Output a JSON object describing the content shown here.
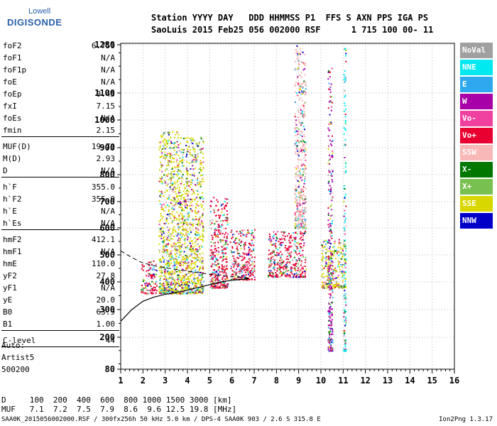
{
  "logo": {
    "line1": "Lowell",
    "line2": "DIGISONDE"
  },
  "header": {
    "line1": "Station YYYY DAY   DDD HHMMSS P1  FFS S AXN PPS IGA PS",
    "line2": "SaoLuis 2015 Feb25 056 002000 RSF      1 715 100 00- 11"
  },
  "params": [
    {
      "label": "foF2",
      "value": "6.750"
    },
    {
      "label": "foF1",
      "value": "N/A"
    },
    {
      "label": "foF1p",
      "value": "N/A"
    },
    {
      "label": "foE",
      "value": "N/A"
    },
    {
      "label": "foEp",
      "value": "0.45"
    },
    {
      "label": "fxI",
      "value": "7.15"
    },
    {
      "label": "foEs",
      "value": "N/A"
    },
    {
      "label": "fmin",
      "value": "2.15"
    },
    {
      "label": "MUF(D)",
      "value": "19.79"
    },
    {
      "label": "M(D)",
      "value": "2.93"
    },
    {
      "label": "D",
      "value": "N/A"
    },
    {
      "label": "h`F",
      "value": "355.0"
    },
    {
      "label": "h`F2",
      "value": "355.0"
    },
    {
      "label": "h`E",
      "value": "N/A"
    },
    {
      "label": "h`Es",
      "value": "N/A"
    },
    {
      "label": "hmF2",
      "value": "412.1"
    },
    {
      "label": "hmF1",
      "value": "N/A"
    },
    {
      "label": "hmE",
      "value": "110.0"
    },
    {
      "label": "yF2",
      "value": "27.8"
    },
    {
      "label": "yF1",
      "value": "N/A"
    },
    {
      "label": "yE",
      "value": "20.0"
    },
    {
      "label": "B0",
      "value": "63.9"
    },
    {
      "label": "B1",
      "value": "1.00"
    },
    {
      "label": "C-level",
      "value": "44"
    }
  ],
  "auto": {
    "line1": "Auto:",
    "line2": "Artist5",
    "line3": "500200"
  },
  "legend": [
    {
      "label": "NoVal",
      "color": "#a0a0a0"
    },
    {
      "label": "NNE",
      "color": "#00e8f0"
    },
    {
      "label": "E",
      "color": "#30a8f0"
    },
    {
      "label": "W",
      "color": "#a800a8"
    },
    {
      "label": "Vo-",
      "color": "#f040a0"
    },
    {
      "label": "Vo+",
      "color": "#e80030"
    },
    {
      "label": "SSW",
      "color": "#f8b8b8"
    },
    {
      "label": "X-",
      "color": "#007800"
    },
    {
      "label": "X+",
      "color": "#78c050"
    },
    {
      "label": "SSE",
      "color": "#d8d800"
    },
    {
      "label": "NNW",
      "color": "#0000c8"
    }
  ],
  "footer": {
    "d_row": "D     100  200  400  600  800 1000 1500 3000 [km]",
    "muf_row": "MUF   7.1  7.2  7.5  7.9  8.6  9.6 12.5 19.8 [MHz]",
    "info": "SAA0K_2015056002000.RSF / 300fx256h 50 kHz 5.0 km / DPS-4 SAA0K 903 / 2.6 S 315.8 E",
    "version": "Ion2Png 1.3.17"
  },
  "chart_data": {
    "type": "scatter",
    "title": "",
    "xlabel": "",
    "ylabel": "",
    "xlim": [
      1,
      16
    ],
    "ylim": [
      80,
      1280
    ],
    "x_ticks": [
      "1",
      "2",
      "3",
      "4",
      "5",
      "6",
      "7",
      "8",
      "9",
      "10",
      "11",
      "12",
      "13",
      "14",
      "15",
      "16"
    ],
    "y_ticks": [
      "80",
      "200",
      "300",
      "400",
      "500",
      "600",
      "700",
      "800",
      "900",
      "1000",
      "1100",
      "1280"
    ],
    "grid": true,
    "legend_position": "right",
    "profile_curve": {
      "x": [
        1.0,
        1.5,
        2.0,
        2.5,
        3.0,
        3.5,
        4.0,
        4.5,
        5.0,
        5.5,
        6.0,
        6.5,
        6.75
      ],
      "y": [
        258,
        300,
        330,
        345,
        355,
        362,
        370,
        380,
        390,
        400,
        406,
        410,
        412
      ]
    },
    "ordinary_trace": {
      "x": [
        1.0,
        1.5,
        2.0,
        2.5,
        3.0,
        3.5,
        4.0,
        4.5,
        5.0,
        5.5,
        6.0,
        6.5,
        6.75
      ],
      "y": [
        515,
        490,
        470,
        460,
        452,
        446,
        440,
        434,
        428,
        424,
        420,
        416,
        414
      ]
    },
    "clusters": [
      {
        "x": [
          1.9,
          2.6
        ],
        "y": [
          360,
          480
        ],
        "dominant": "Vo+"
      },
      {
        "x": [
          2.7,
          3.6
        ],
        "y": [
          360,
          960
        ],
        "dominant": "SSE"
      },
      {
        "x": [
          3.6,
          4.7
        ],
        "y": [
          360,
          940
        ],
        "dominant": "SSE"
      },
      {
        "x": [
          5.0,
          5.8
        ],
        "y": [
          380,
          720
        ],
        "dominant": "Vo+"
      },
      {
        "x": [
          5.9,
          7.0
        ],
        "y": [
          410,
          600
        ],
        "dominant": "Vo+"
      },
      {
        "x": [
          7.6,
          9.3
        ],
        "y": [
          420,
          590
        ],
        "dominant": "Vo+"
      },
      {
        "x": [
          8.8,
          9.3
        ],
        "y": [
          600,
          1280
        ],
        "dominant": "SSW"
      },
      {
        "x": [
          10.0,
          11.1
        ],
        "y": [
          380,
          560
        ],
        "dominant": "SSE"
      },
      {
        "x": [
          10.3,
          10.5
        ],
        "y": [
          150,
          1200
        ],
        "dominant": "W"
      },
      {
        "x": [
          11.0,
          11.1
        ],
        "y": [
          150,
          1280
        ],
        "dominant": "NNE"
      }
    ]
  }
}
